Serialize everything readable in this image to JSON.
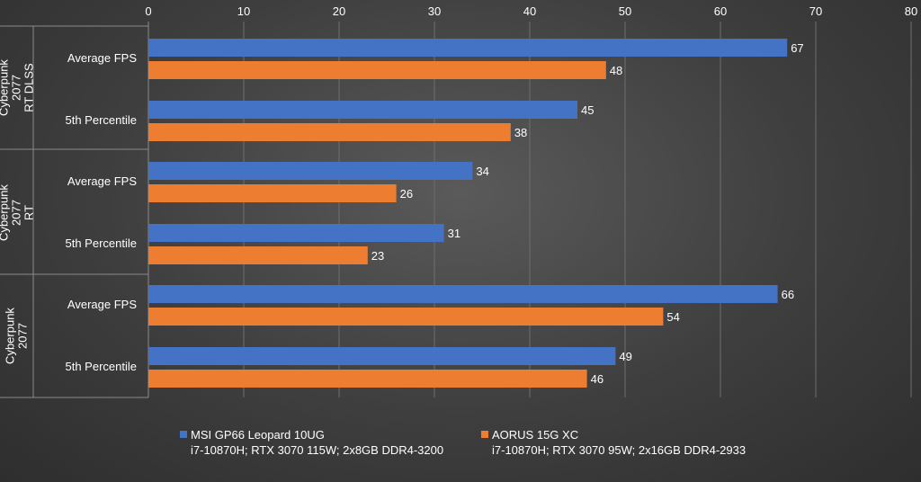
{
  "chart_data": {
    "type": "bar",
    "orientation": "horizontal",
    "xlim": [
      0,
      80
    ],
    "x_ticks": [
      0,
      10,
      20,
      30,
      40,
      50,
      60,
      70,
      80
    ],
    "x_axis_position": "top",
    "grid": true,
    "legend_position": "bottom",
    "groups": [
      {
        "label_lines": [
          "Cyberpunk",
          "2077",
          "RT DLSS"
        ],
        "categories": [
          "Average FPS",
          "5th Percentile"
        ]
      },
      {
        "label_lines": [
          "Cyberpunk",
          "2077",
          "RT"
        ],
        "categories": [
          "Average FPS",
          "5th Percentile"
        ]
      },
      {
        "label_lines": [
          "Cyberpunk",
          "2077"
        ],
        "categories": [
          "Average FPS",
          "5th Percentile"
        ]
      }
    ],
    "series": [
      {
        "name": "MSI GP66 Leopard 10UG",
        "subtitle": "i7-10870H; RTX 3070 115W; 2x8GB DDR4-3200",
        "color": "#4472c4",
        "values": [
          67,
          45,
          34,
          31,
          66,
          49
        ]
      },
      {
        "name": "AORUS 15G XC",
        "subtitle": "i7-10870H; RTX 3070 95W; 2x16GB DDR4-2933",
        "color": "#ed7d31",
        "values": [
          48,
          38,
          26,
          23,
          54,
          46
        ]
      }
    ]
  }
}
